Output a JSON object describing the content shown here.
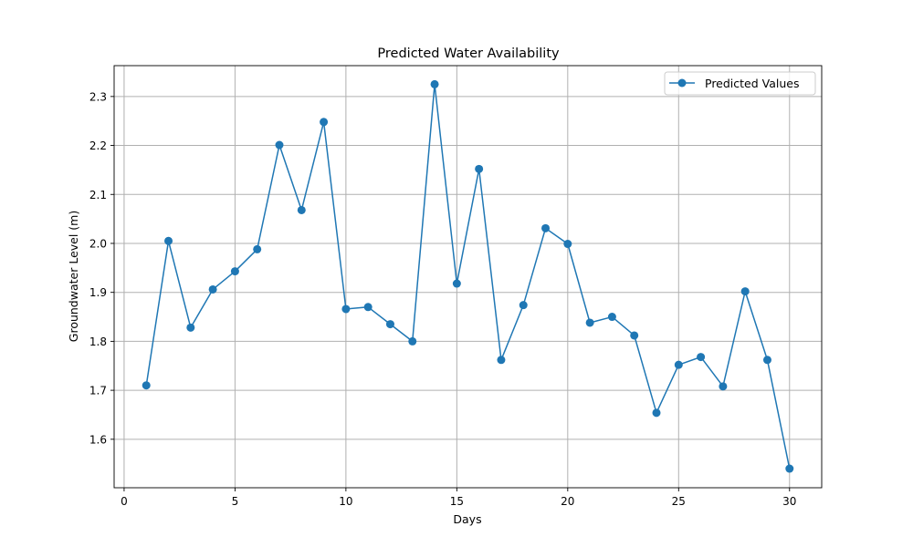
{
  "chart_data": {
    "type": "line",
    "title": "Predicted Water Availability",
    "xlabel": "Days",
    "ylabel": "Groundwater Level (m)",
    "xlim": [
      -0.45,
      31.45
    ],
    "ylim": [
      1.501,
      2.363
    ],
    "xticks": [
      0,
      5,
      10,
      15,
      20,
      25,
      30
    ],
    "yticks": [
      1.6,
      1.7,
      1.8,
      1.9,
      2.0,
      2.1,
      2.2,
      2.3
    ],
    "ytick_labels": [
      "1.6",
      "1.7",
      "1.8",
      "1.9",
      "2.0",
      "2.1",
      "2.2",
      "2.3"
    ],
    "grid": true,
    "legend_position": "top-right",
    "series": [
      {
        "name": "Predicted Values",
        "color": "#1f77b4",
        "marker": "circle",
        "x": [
          1,
          2,
          3,
          4,
          5,
          6,
          7,
          8,
          9,
          10,
          11,
          12,
          13,
          14,
          15,
          16,
          17,
          18,
          19,
          20,
          21,
          22,
          23,
          24,
          25,
          26,
          27,
          28,
          29,
          30
        ],
        "y": [
          1.71,
          2.005,
          1.828,
          1.906,
          1.943,
          1.988,
          2.201,
          2.068,
          2.248,
          1.866,
          1.87,
          1.835,
          1.8,
          2.325,
          1.918,
          2.152,
          1.762,
          1.874,
          2.031,
          1.999,
          1.838,
          1.85,
          1.812,
          1.654,
          1.752,
          1.768,
          1.708,
          1.902,
          1.762,
          1.54
        ]
      }
    ]
  }
}
